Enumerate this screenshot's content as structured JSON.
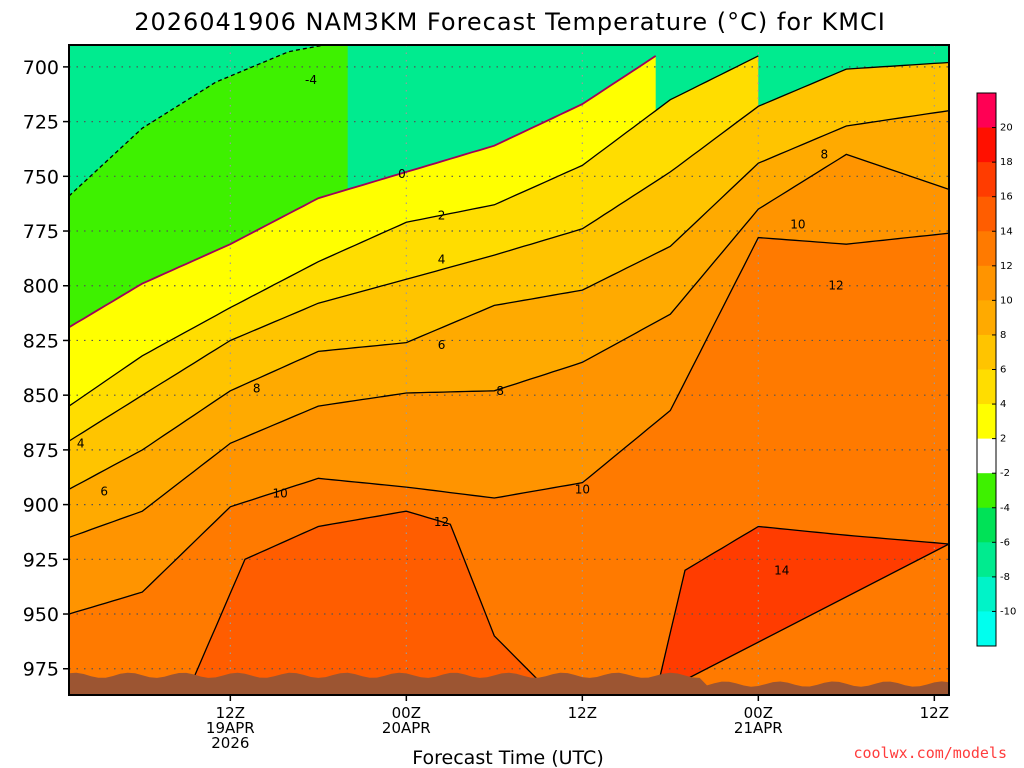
{
  "chart_data": {
    "type": "heatmap",
    "title": "2026041906 NAM3KM Forecast Temperature (°C) for KMCI",
    "xlabel": "Forecast Time (UTC)",
    "ylabel": "",
    "x_range_hours": [
      -5,
      55
    ],
    "y_range_hpa": [
      690,
      987
    ],
    "y_ticks": [
      700,
      725,
      750,
      775,
      800,
      825,
      850,
      875,
      900,
      925,
      950,
      975
    ],
    "x_ticks": [
      {
        "hour": 6,
        "lines": [
          "12Z",
          "19APR",
          "2026"
        ]
      },
      {
        "hour": 18,
        "lines": [
          "00Z",
          "20APR"
        ]
      },
      {
        "hour": 30,
        "lines": [
          "12Z"
        ]
      },
      {
        "hour": 42,
        "lines": [
          "00Z",
          "21APR"
        ]
      },
      {
        "hour": 54,
        "lines": [
          "12Z"
        ]
      }
    ],
    "contour_levels": [
      -10,
      -8,
      -6,
      -4,
      -2,
      0,
      2,
      4,
      6,
      8,
      10,
      12,
      14,
      16,
      18,
      20
    ],
    "contour_labels": [
      {
        "text": "-4",
        "hour": 11.5,
        "hpa": 706
      },
      {
        "text": "0",
        "hour": 17.7,
        "hpa": 749
      },
      {
        "text": "2",
        "hour": 20.4,
        "hpa": 768
      },
      {
        "text": "4",
        "hour": 20.4,
        "hpa": 788
      },
      {
        "text": "6",
        "hour": 20.4,
        "hpa": 827
      },
      {
        "text": "8",
        "hour": 7.8,
        "hpa": 847
      },
      {
        "text": "8",
        "hour": 24.4,
        "hpa": 848
      },
      {
        "text": "8",
        "hour": 46.5,
        "hpa": 740
      },
      {
        "text": "10",
        "hour": 9.4,
        "hpa": 895
      },
      {
        "text": "10",
        "hour": 30.0,
        "hpa": 893
      },
      {
        "text": "10",
        "hour": 44.7,
        "hpa": 772
      },
      {
        "text": "12",
        "hour": 20.4,
        "hpa": 908
      },
      {
        "text": "12",
        "hour": 47.3,
        "hpa": 800
      },
      {
        "text": "14",
        "hour": 43.6,
        "hpa": 930
      },
      {
        "text": "4",
        "hour": -4.2,
        "hpa": 872
      },
      {
        "text": "6",
        "hour": -2.6,
        "hpa": 894
      }
    ],
    "isotherms": [
      {
        "level": -4,
        "hpa_at_hours": [
          [
            -5,
            759
          ],
          [
            0,
            728
          ],
          [
            5,
            707
          ],
          [
            10,
            693
          ],
          [
            14,
            688
          ]
        ]
      },
      {
        "level": 0,
        "hpa_at_hours": [
          [
            -5,
            819
          ],
          [
            0,
            799
          ],
          [
            6,
            781
          ],
          [
            12,
            760
          ],
          [
            18,
            748
          ],
          [
            24,
            736
          ],
          [
            30,
            717
          ],
          [
            35,
            695
          ]
        ]
      },
      {
        "level": 2,
        "hpa_at_hours": [
          [
            -5,
            855
          ],
          [
            0,
            832
          ],
          [
            6,
            810
          ],
          [
            12,
            789
          ],
          [
            18,
            771
          ],
          [
            24,
            763
          ],
          [
            30,
            745
          ],
          [
            36,
            715
          ],
          [
            42,
            695
          ]
        ]
      },
      {
        "level": 4,
        "hpa_at_hours": [
          [
            -5,
            871
          ],
          [
            0,
            850
          ],
          [
            6,
            825
          ],
          [
            12,
            808
          ],
          [
            18,
            797
          ],
          [
            24,
            786
          ],
          [
            30,
            774
          ],
          [
            36,
            748
          ],
          [
            42,
            718
          ],
          [
            48,
            701
          ],
          [
            55,
            698
          ]
        ]
      },
      {
        "level": 6,
        "hpa_at_hours": [
          [
            -5,
            893
          ],
          [
            0,
            875
          ],
          [
            6,
            848
          ],
          [
            12,
            830
          ],
          [
            18,
            826
          ],
          [
            24,
            809
          ],
          [
            30,
            802
          ],
          [
            36,
            782
          ],
          [
            42,
            744
          ],
          [
            48,
            727
          ],
          [
            55,
            720
          ]
        ]
      },
      {
        "level": 8,
        "hpa_at_hours": [
          [
            -5,
            915
          ],
          [
            0,
            903
          ],
          [
            6,
            872
          ],
          [
            12,
            855
          ],
          [
            18,
            849
          ],
          [
            24,
            848
          ],
          [
            30,
            835
          ],
          [
            36,
            813
          ],
          [
            42,
            765
          ],
          [
            48,
            740
          ],
          [
            55,
            756
          ]
        ]
      },
      {
        "level": 10,
        "hpa_at_hours": [
          [
            -5,
            950
          ],
          [
            0,
            940
          ],
          [
            6,
            901
          ],
          [
            12,
            888
          ],
          [
            18,
            892
          ],
          [
            24,
            897
          ],
          [
            30,
            890
          ],
          [
            36,
            857
          ],
          [
            42,
            778
          ],
          [
            48,
            781
          ],
          [
            55,
            776
          ]
        ]
      },
      {
        "level": 12,
        "hpa_at_hours": [
          [
            3,
            987
          ],
          [
            7,
            925
          ],
          [
            12,
            910
          ],
          [
            18,
            903
          ],
          [
            21,
            909
          ],
          [
            24,
            960
          ],
          [
            28,
            987
          ]
        ]
      },
      {
        "level": 14,
        "hpa_at_hours": [
          [
            35,
            987
          ],
          [
            37,
            930
          ],
          [
            42,
            910
          ],
          [
            48,
            914
          ],
          [
            55,
            918
          ]
        ]
      }
    ],
    "colorbar": {
      "labels": [
        20,
        18,
        16,
        14,
        12,
        10,
        8,
        6,
        4,
        2,
        -2,
        -4,
        -6,
        -8,
        -10
      ],
      "colors": [
        "#ff0054",
        "#ff1000",
        "#ff3c00",
        "#ff5d00",
        "#ff7a00",
        "#ff9400",
        "#ffaa00",
        "#ffc400",
        "#ffdd00",
        "#ffff00",
        "#ffffff",
        "#3ef100",
        "#00e257",
        "#00eb8f",
        "#00f3c8",
        "#00ffee"
      ]
    },
    "credit": "coolwx.com/models",
    "colors": {
      "terrain": "#9c5532",
      "freezing_line": "#a0005a",
      "grid": "#555555"
    }
  }
}
